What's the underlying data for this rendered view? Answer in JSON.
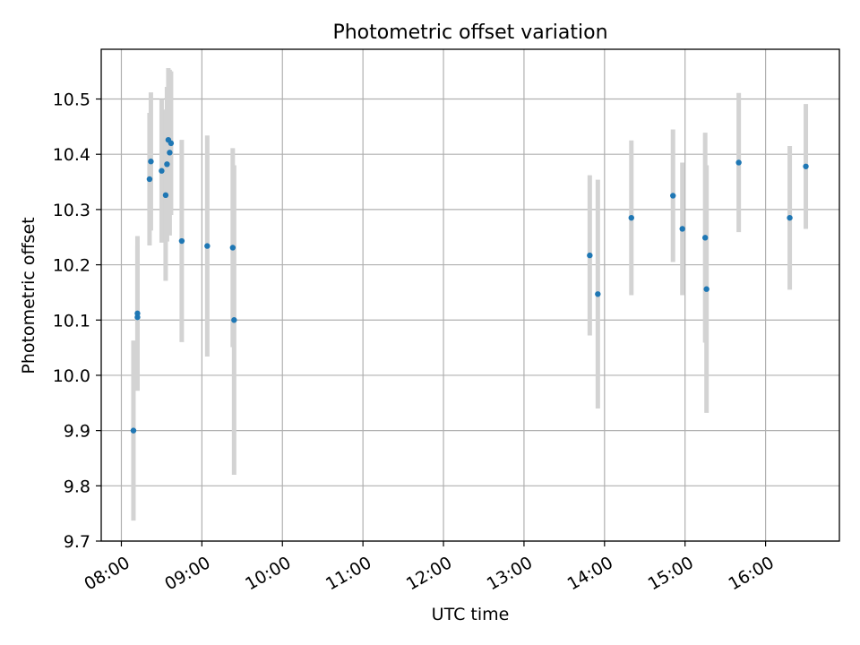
{
  "chart_data": {
    "type": "scatter",
    "title": "Photometric offset variation",
    "xlabel": "UTC time",
    "ylabel": "Photometric offset",
    "xlim": [
      "07:45",
      "16:55"
    ],
    "ylim": [
      9.7,
      10.59
    ],
    "x_ticks": [
      "08:00",
      "09:00",
      "10:00",
      "11:00",
      "12:00",
      "13:00",
      "14:00",
      "15:00",
      "16:00"
    ],
    "y_ticks": [
      "9.7",
      "9.8",
      "9.9",
      "10.0",
      "10.1",
      "10.2",
      "10.3",
      "10.4",
      "10.5"
    ],
    "grid": true,
    "colors": {
      "point": "#1f77b4",
      "errorbar": "#d3d3d3",
      "grid": "#b0b0b0"
    },
    "points": [
      {
        "x": "08:09",
        "y": 9.9,
        "err": 0.163
      },
      {
        "x": "08:12",
        "y": 10.105,
        "err": 0.13
      },
      {
        "x": "08:12",
        "y": 10.112,
        "err": 0.14
      },
      {
        "x": "08:21",
        "y": 10.355,
        "err": 0.12
      },
      {
        "x": "08:22",
        "y": 10.387,
        "err": 0.125
      },
      {
        "x": "08:30",
        "y": 10.37,
        "err": 0.13
      },
      {
        "x": "08:33",
        "y": 10.326,
        "err": 0.155
      },
      {
        "x": "08:34",
        "y": 10.382,
        "err": 0.14
      },
      {
        "x": "08:35",
        "y": 10.426,
        "err": 0.13
      },
      {
        "x": "08:36",
        "y": 10.403,
        "err": 0.15
      },
      {
        "x": "08:37",
        "y": 10.42,
        "err": 0.13
      },
      {
        "x": "08:45",
        "y": 10.243,
        "err": 0.183
      },
      {
        "x": "09:04",
        "y": 10.234,
        "err": 0.2
      },
      {
        "x": "09:23",
        "y": 10.231,
        "err": 0.18
      },
      {
        "x": "09:24",
        "y": 10.1,
        "err": 0.28
      },
      {
        "x": "13:49",
        "y": 10.217,
        "err": 0.145
      },
      {
        "x": "13:55",
        "y": 10.147,
        "err": 0.207
      },
      {
        "x": "14:20",
        "y": 10.285,
        "err": 0.14
      },
      {
        "x": "14:51",
        "y": 10.325,
        "err": 0.12
      },
      {
        "x": "14:58",
        "y": 10.265,
        "err": 0.12
      },
      {
        "x": "15:15",
        "y": 10.249,
        "err": 0.19
      },
      {
        "x": "15:16",
        "y": 10.156,
        "err": 0.224
      },
      {
        "x": "15:40",
        "y": 10.385,
        "err": 0.126
      },
      {
        "x": "16:18",
        "y": 10.285,
        "err": 0.13
      },
      {
        "x": "16:30",
        "y": 10.378,
        "err": 0.113
      }
    ]
  }
}
